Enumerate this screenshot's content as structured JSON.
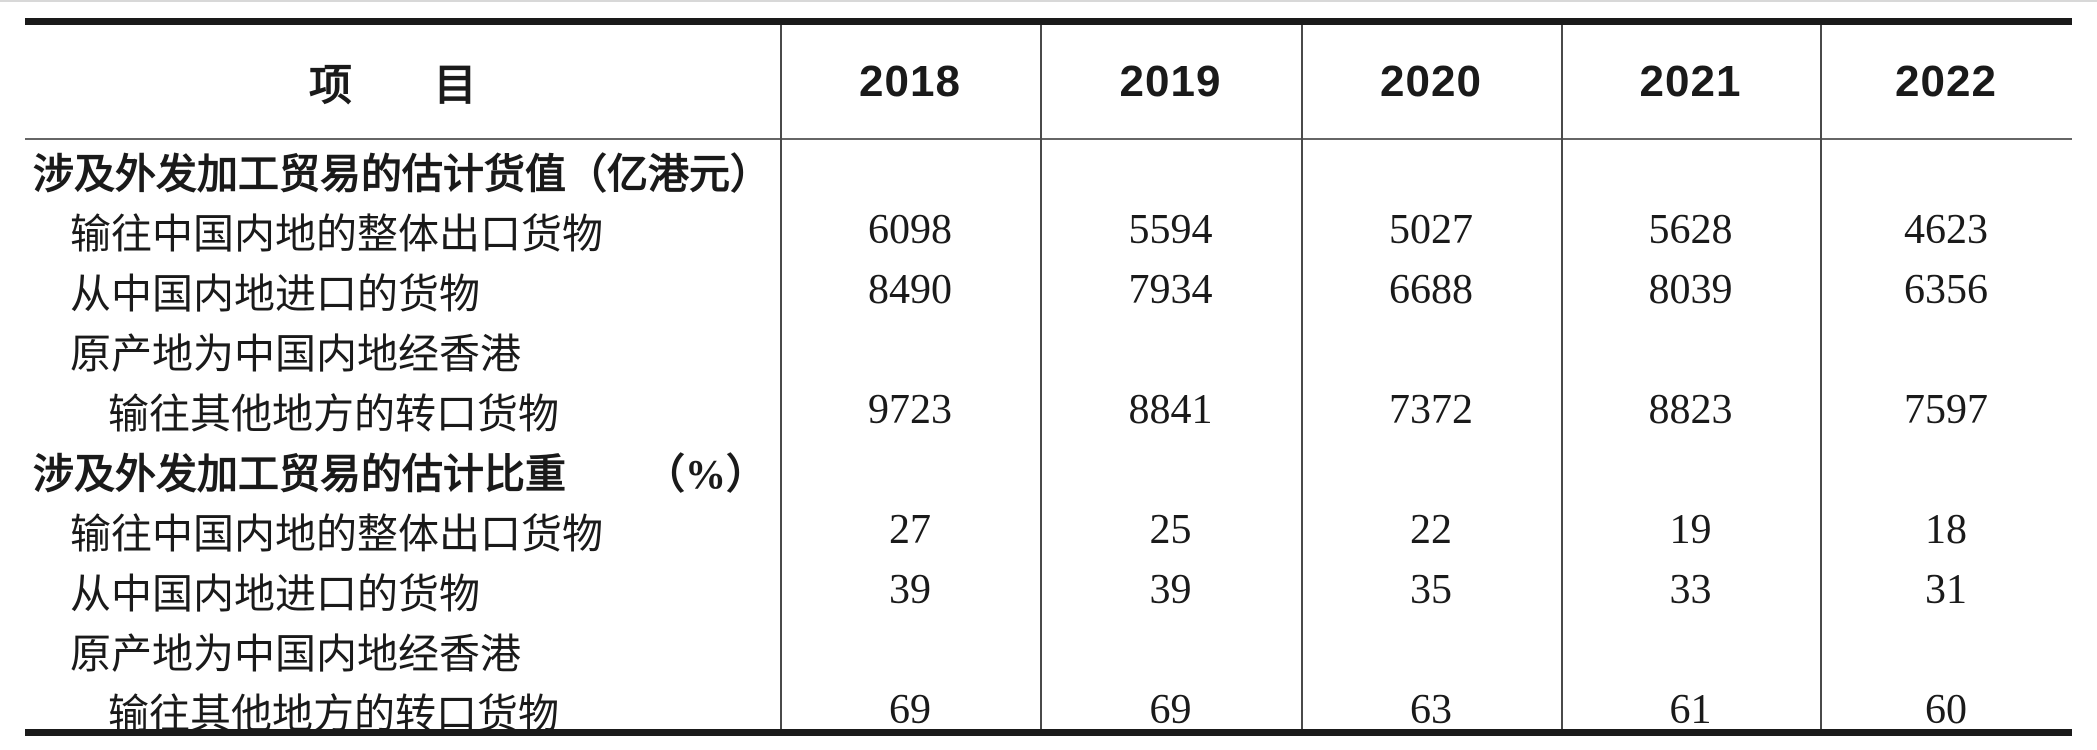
{
  "table": {
    "header": {
      "item_label": "项　目",
      "years": [
        "2018",
        "2019",
        "2020",
        "2021",
        "2022"
      ]
    },
    "rows": [
      {
        "label": "涉及外发加工贸易的估计货值",
        "unit": "（亿港元）",
        "bold": true,
        "indent": 0,
        "values": [
          "",
          "",
          "",
          "",
          ""
        ]
      },
      {
        "label": "输往中国内地的整体出口货物",
        "bold": false,
        "indent": 1,
        "values": [
          "6098",
          "5594",
          "5027",
          "5628",
          "4623"
        ]
      },
      {
        "label": "从中国内地进口的货物",
        "bold": false,
        "indent": 1,
        "values": [
          "8490",
          "7934",
          "6688",
          "8039",
          "6356"
        ]
      },
      {
        "label": "原产地为中国内地经香港",
        "bold": false,
        "indent": 1,
        "values": [
          "",
          "",
          "",
          "",
          ""
        ]
      },
      {
        "label": "输往其他地方的转口货物",
        "bold": false,
        "indent": 2,
        "values": [
          "9723",
          "8841",
          "7372",
          "8823",
          "7597"
        ]
      },
      {
        "label": "涉及外发加工贸易的估计比重",
        "unit": "（%）",
        "bold": true,
        "indent": 0,
        "values": [
          "",
          "",
          "",
          "",
          ""
        ]
      },
      {
        "label": "输往中国内地的整体出口货物",
        "bold": false,
        "indent": 1,
        "values": [
          "27",
          "25",
          "22",
          "19",
          "18"
        ]
      },
      {
        "label": "从中国内地进口的货物",
        "bold": false,
        "indent": 1,
        "values": [
          "39",
          "39",
          "35",
          "33",
          "31"
        ]
      },
      {
        "label": "原产地为中国内地经香港",
        "bold": false,
        "indent": 1,
        "values": [
          "",
          "",
          "",
          "",
          ""
        ]
      },
      {
        "label": "输往其他地方的转口货物",
        "bold": false,
        "indent": 2,
        "values": [
          "69",
          "69",
          "63",
          "61",
          "60"
        ]
      }
    ],
    "colors": {
      "text": "#1a1a1a",
      "border_heavy": "#1a1a1a",
      "border_light": "#4a4a4a"
    }
  }
}
